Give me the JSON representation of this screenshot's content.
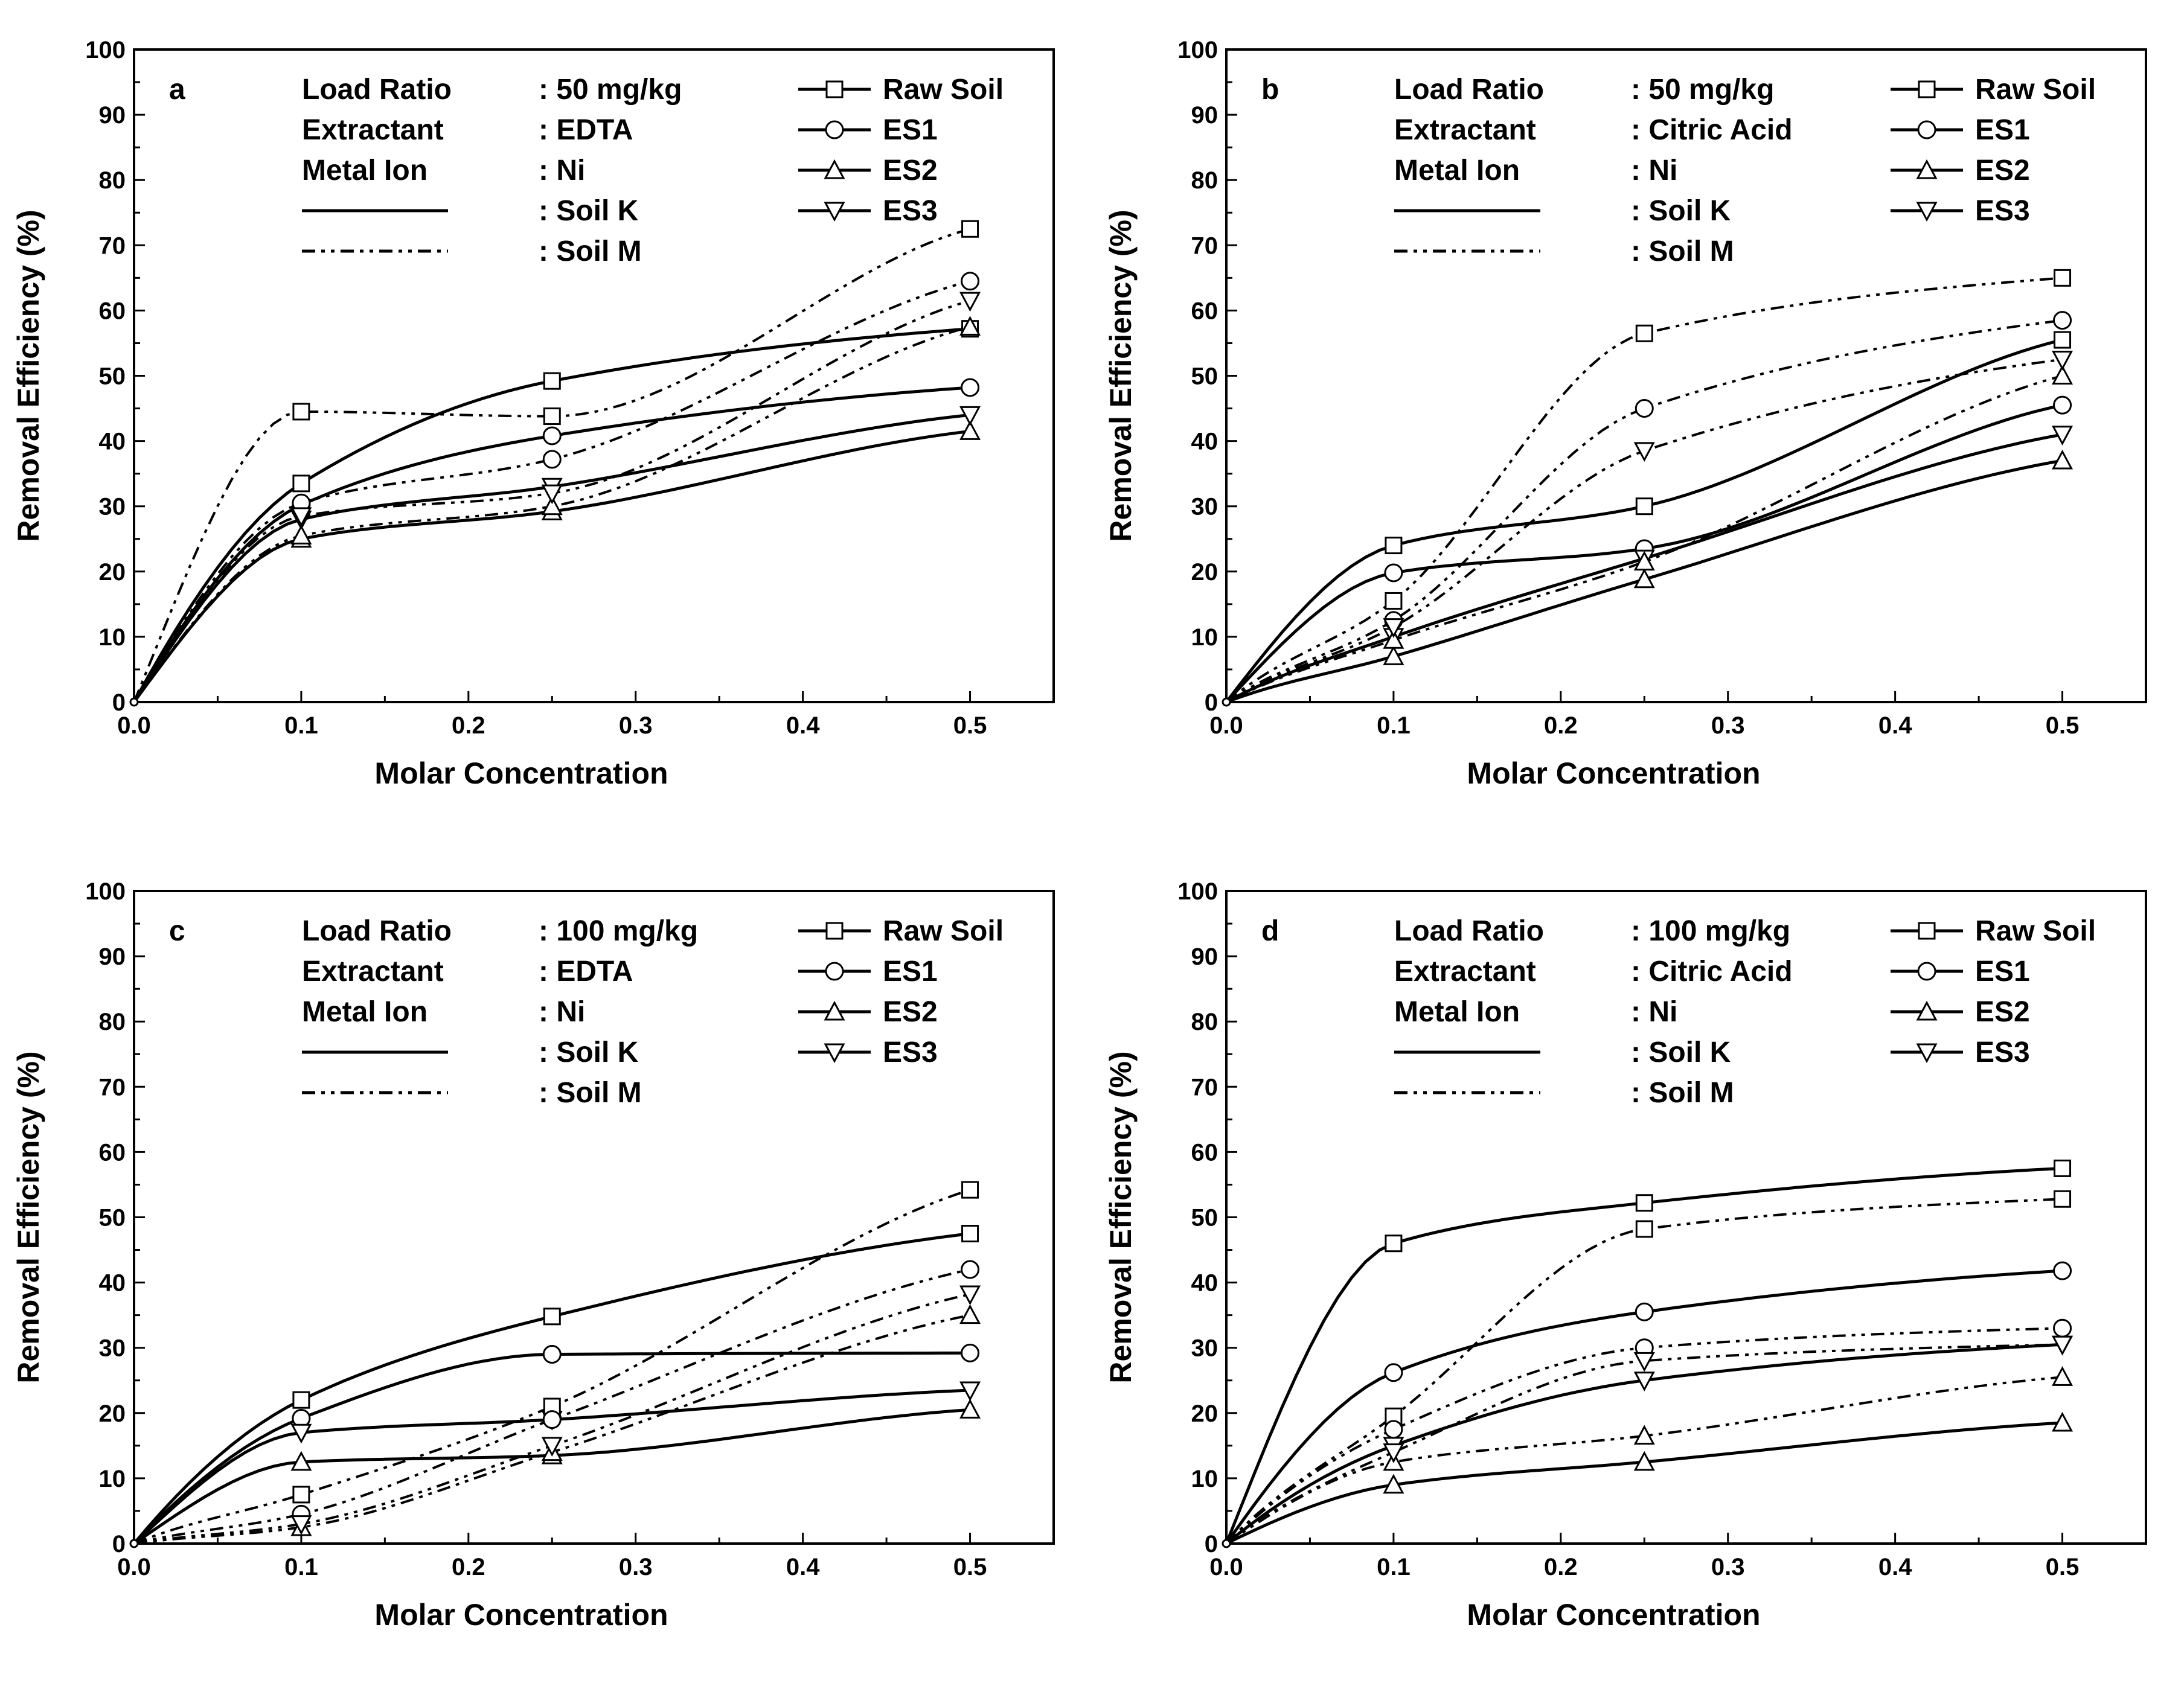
{
  "chart_data": [
    {
      "type": "line",
      "panel_label": "a",
      "xlabel": "Molar Concentration",
      "ylabel": "Removal Efficiency (%)",
      "xlim": [
        0.0,
        0.55
      ],
      "ylim": [
        0,
        100
      ],
      "x_ticks": [
        "0.0",
        "0.1",
        "0.2",
        "0.3",
        "0.4",
        "0.5"
      ],
      "y_ticks": [
        "0",
        "10",
        "20",
        "30",
        "40",
        "50",
        "60",
        "70",
        "80",
        "90",
        "100"
      ],
      "info": [
        {
          "key": "Load Ratio",
          "value": ": 50 mg/kg"
        },
        {
          "key": "Extractant",
          "value": ": EDTA"
        },
        {
          "key": "Metal Ion",
          "value": ": Ni"
        },
        {
          "key": "",
          "value": ": Soil K"
        },
        {
          "key": "",
          "value": ": Soil M"
        }
      ],
      "legend": [
        "Raw Soil",
        "ES1",
        "ES2",
        "ES3"
      ],
      "x": [
        0.1,
        0.25,
        0.5
      ],
      "series": [
        {
          "name": "Raw Soil",
          "soil": "Soil K",
          "values": [
            33.5,
            49.2,
            57.2
          ]
        },
        {
          "name": "ES1",
          "soil": "Soil K",
          "values": [
            30.2,
            40.8,
            48.2
          ]
        },
        {
          "name": "ES2",
          "soil": "Soil K",
          "values": [
            25.0,
            29.2,
            41.5
          ]
        },
        {
          "name": "ES3",
          "soil": "Soil K",
          "values": [
            28.0,
            33.0,
            44.0
          ]
        },
        {
          "name": "Raw Soil",
          "soil": "Soil M",
          "values": [
            44.5,
            43.8,
            72.5
          ]
        },
        {
          "name": "ES1",
          "soil": "Soil M",
          "values": [
            30.5,
            37.2,
            64.5
          ]
        },
        {
          "name": "ES2",
          "soil": "Soil M",
          "values": [
            25.5,
            30.0,
            57.5
          ]
        },
        {
          "name": "ES3",
          "soil": "Soil M",
          "values": [
            28.5,
            32.0,
            61.5
          ]
        }
      ]
    },
    {
      "type": "line",
      "panel_label": "b",
      "xlabel": "Molar Concentration",
      "ylabel": "Removal Efficiency (%)",
      "xlim": [
        0.0,
        0.55
      ],
      "ylim": [
        0,
        100
      ],
      "x_ticks": [
        "0.0",
        "0.1",
        "0.2",
        "0.3",
        "0.4",
        "0.5"
      ],
      "y_ticks": [
        "0",
        "10",
        "20",
        "30",
        "40",
        "50",
        "60",
        "70",
        "80",
        "90",
        "100"
      ],
      "info": [
        {
          "key": "Load Ratio",
          "value": ": 50 mg/kg"
        },
        {
          "key": "Extractant",
          "value": ": Citric Acid"
        },
        {
          "key": "Metal Ion",
          "value": ": Ni"
        },
        {
          "key": "",
          "value": ": Soil K"
        },
        {
          "key": "",
          "value": ": Soil M"
        }
      ],
      "legend": [
        "Raw Soil",
        "ES1",
        "ES2",
        "ES3"
      ],
      "x": [
        0.1,
        0.25,
        0.5
      ],
      "series": [
        {
          "name": "Raw Soil",
          "soil": "Soil K",
          "values": [
            24.0,
            30.0,
            55.5
          ]
        },
        {
          "name": "ES1",
          "soil": "Soil K",
          "values": [
            19.8,
            23.5,
            45.5
          ]
        },
        {
          "name": "ES2",
          "soil": "Soil K",
          "values": [
            7.0,
            18.8,
            37.0
          ]
        },
        {
          "name": "ES3",
          "soil": "Soil K",
          "values": [
            10.0,
            22.0,
            41.0
          ]
        },
        {
          "name": "Raw Soil",
          "soil": "Soil M",
          "values": [
            15.5,
            56.5,
            65.0
          ]
        },
        {
          "name": "ES1",
          "soil": "Soil M",
          "values": [
            12.5,
            45.0,
            58.5
          ]
        },
        {
          "name": "ES2",
          "soil": "Soil M",
          "values": [
            9.5,
            21.5,
            50.0
          ]
        },
        {
          "name": "ES3",
          "soil": "Soil M",
          "values": [
            11.5,
            38.5,
            52.5
          ]
        }
      ]
    },
    {
      "type": "line",
      "panel_label": "c",
      "xlabel": "Molar Concentration",
      "ylabel": "Removal Efficiency (%)",
      "xlim": [
        0.0,
        0.55
      ],
      "ylim": [
        0,
        100
      ],
      "x_ticks": [
        "0.0",
        "0.1",
        "0.2",
        "0.3",
        "0.4",
        "0.5"
      ],
      "y_ticks": [
        "0",
        "10",
        "20",
        "30",
        "40",
        "50",
        "60",
        "70",
        "80",
        "90",
        "100"
      ],
      "info": [
        {
          "key": "Load Ratio",
          "value": ": 100 mg/kg"
        },
        {
          "key": "Extractant",
          "value": ": EDTA"
        },
        {
          "key": "Metal Ion",
          "value": ": Ni"
        },
        {
          "key": "",
          "value": ": Soil K"
        },
        {
          "key": "",
          "value": ": Soil M"
        }
      ],
      "legend": [
        "Raw Soil",
        "ES1",
        "ES2",
        "ES3"
      ],
      "x": [
        0.1,
        0.25,
        0.5
      ],
      "series": [
        {
          "name": "Raw Soil",
          "soil": "Soil K",
          "values": [
            22.0,
            34.8,
            47.5
          ]
        },
        {
          "name": "ES1",
          "soil": "Soil K",
          "values": [
            19.2,
            29.0,
            29.2
          ]
        },
        {
          "name": "ES2",
          "soil": "Soil K",
          "values": [
            12.5,
            13.5,
            20.5
          ]
        },
        {
          "name": "ES3",
          "soil": "Soil K",
          "values": [
            17.0,
            19.0,
            23.5
          ]
        },
        {
          "name": "Raw Soil",
          "soil": "Soil M",
          "values": [
            7.5,
            21.0,
            54.2
          ]
        },
        {
          "name": "ES1",
          "soil": "Soil M",
          "values": [
            4.5,
            19.0,
            42.0
          ]
        },
        {
          "name": "ES2",
          "soil": "Soil M",
          "values": [
            2.5,
            14.0,
            35.0
          ]
        },
        {
          "name": "ES3",
          "soil": "Soil M",
          "values": [
            3.0,
            15.0,
            38.2
          ]
        }
      ]
    },
    {
      "type": "line",
      "panel_label": "d",
      "xlabel": "Molar Concentration",
      "ylabel": "Removal Efficiency (%)",
      "xlim": [
        0.0,
        0.55
      ],
      "ylim": [
        0,
        100
      ],
      "x_ticks": [
        "0.0",
        "0.1",
        "0.2",
        "0.3",
        "0.4",
        "0.5"
      ],
      "y_ticks": [
        "0",
        "10",
        "20",
        "30",
        "40",
        "50",
        "60",
        "70",
        "80",
        "90",
        "100"
      ],
      "info": [
        {
          "key": "Load Ratio",
          "value": ": 100 mg/kg"
        },
        {
          "key": "Extractant",
          "value": ": Citric Acid"
        },
        {
          "key": "Metal Ion",
          "value": ": Ni"
        },
        {
          "key": "",
          "value": ": Soil K"
        },
        {
          "key": "",
          "value": ": Soil M"
        }
      ],
      "legend": [
        "Raw Soil",
        "ES1",
        "ES2",
        "ES3"
      ],
      "x": [
        0.1,
        0.25,
        0.5
      ],
      "series": [
        {
          "name": "Raw Soil",
          "soil": "Soil K",
          "values": [
            46.0,
            52.2,
            57.5
          ]
        },
        {
          "name": "ES1",
          "soil": "Soil K",
          "values": [
            26.2,
            35.5,
            41.8
          ]
        },
        {
          "name": "ES2",
          "soil": "Soil K",
          "values": [
            9.0,
            12.5,
            18.5
          ]
        },
        {
          "name": "ES3",
          "soil": "Soil K",
          "values": [
            15.0,
            25.0,
            30.5
          ]
        },
        {
          "name": "Raw Soil",
          "soil": "Soil M",
          "values": [
            19.5,
            48.2,
            52.8
          ]
        },
        {
          "name": "ES1",
          "soil": "Soil M",
          "values": [
            17.5,
            30.0,
            33.0
          ]
        },
        {
          "name": "ES2",
          "soil": "Soil M",
          "values": [
            12.5,
            16.5,
            25.5
          ]
        },
        {
          "name": "ES3",
          "soil": "Soil M",
          "values": [
            14.0,
            28.0,
            30.5
          ]
        }
      ]
    }
  ]
}
